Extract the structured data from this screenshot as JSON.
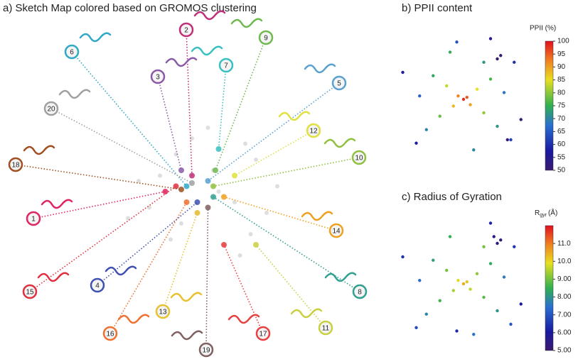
{
  "chart_data": [
    {
      "type": "sketch-map",
      "title": "a) Sketch Map colored based on GROMOS clustering",
      "xlim": [
        -1,
        1
      ],
      "ylim": [
        -1,
        1
      ],
      "background": {
        "color": "#c8c8c8",
        "x": [
          0.1,
          -0.2,
          0.3,
          -0.4,
          0.5,
          -0.1,
          0.2,
          -0.3,
          0.6,
          -0.6,
          0.05,
          -0.5,
          0.4,
          -0.25,
          0.35,
          0.7,
          -0.7,
          0.15,
          -0.05,
          0.45
        ],
        "y": [
          0.2,
          -0.3,
          -0.1,
          0.15,
          0.3,
          0.5,
          -0.5,
          -0.45,
          -0.2,
          0.1,
          0.6,
          -0.15,
          0.45,
          0.35,
          -0.6,
          0.05,
          -0.25,
          0.0,
          -0.2,
          -0.4
        ]
      },
      "series": [
        {
          "name": "1",
          "color": "#e0245e",
          "x": [
            -0.35
          ],
          "y": [
            0.0
          ]
        },
        {
          "name": "2",
          "color": "#c0307a",
          "x": [
            -0.1
          ],
          "y": [
            0.15
          ]
        },
        {
          "name": "3",
          "color": "#8a5aa8",
          "x": [
            -0.2
          ],
          "y": [
            0.2
          ]
        },
        {
          "name": "4",
          "color": "#4050b0",
          "x": [
            -0.05
          ],
          "y": [
            -0.1
          ]
        },
        {
          "name": "5",
          "color": "#5aa0d0",
          "x": [
            0.05
          ],
          "y": [
            0.1
          ]
        },
        {
          "name": "6",
          "color": "#30a8c8",
          "x": [
            -0.15
          ],
          "y": [
            0.05
          ]
        },
        {
          "name": "7",
          "color": "#3ac0c0",
          "x": [
            0.15
          ],
          "y": [
            0.4
          ]
        },
        {
          "name": "8",
          "color": "#30a090",
          "x": [
            0.1
          ],
          "y": [
            -0.05
          ]
        },
        {
          "name": "9",
          "color": "#70b850",
          "x": [
            0.12
          ],
          "y": [
            0.2
          ]
        },
        {
          "name": "10",
          "color": "#90c040",
          "x": [
            0.1
          ],
          "y": [
            0.05
          ]
        },
        {
          "name": "11",
          "color": "#c8d040",
          "x": [
            0.5
          ],
          "y": [
            -0.5
          ]
        },
        {
          "name": "12",
          "color": "#e0e040",
          "x": [
            0.3
          ],
          "y": [
            0.15
          ]
        },
        {
          "name": "13",
          "color": "#e8c030",
          "x": [
            -0.05
          ],
          "y": [
            -0.2
          ]
        },
        {
          "name": "14",
          "color": "#f0a020",
          "x": [
            0.2
          ],
          "y": [
            -0.05
          ]
        },
        {
          "name": "15",
          "color": "#e03040",
          "x": [
            -0.25
          ],
          "y": [
            0.05
          ]
        },
        {
          "name": "16",
          "color": "#f07030",
          "x": [
            -0.15
          ],
          "y": [
            -0.1
          ]
        },
        {
          "name": "17",
          "color": "#e84040",
          "x": [
            0.2
          ],
          "y": [
            -0.5
          ]
        },
        {
          "name": "18",
          "color": "#a05020",
          "x": [
            -0.2
          ],
          "y": [
            0.02
          ]
        },
        {
          "name": "19",
          "color": "#806060",
          "x": [
            0.05
          ],
          "y": [
            -0.15
          ]
        },
        {
          "name": "20",
          "color": "#a0a0a0",
          "x": [
            -0.1
          ],
          "y": [
            0.08
          ]
        }
      ]
    },
    {
      "type": "scatter",
      "title": "b) PPII content",
      "colorbar_label": "PPII (%)",
      "xlim": [
        -1,
        1
      ],
      "ylim": [
        -1,
        1
      ],
      "clim": [
        50,
        100
      ],
      "cticks": [
        50,
        55,
        60,
        65,
        70,
        75,
        80,
        85,
        90,
        95,
        100
      ],
      "x": [
        0,
        0.05,
        -0.08,
        0.1,
        -0.15,
        0.2,
        -0.25,
        0.3,
        -0.35,
        0.4,
        -0.45,
        0.5,
        -0.55,
        0.6,
        -0.65,
        0.7,
        -0.2,
        0.15,
        0.75,
        -0.7,
        0.4,
        0.85,
        -0.9,
        0.3,
        0.5,
        0.65,
        0.55,
        -0.1
      ],
      "y": [
        0,
        0.03,
        0.05,
        -0.08,
        -0.1,
        0.15,
        0.2,
        -0.2,
        -0.25,
        0.3,
        0.35,
        -0.4,
        -0.45,
        0.1,
        0.05,
        -0.6,
        0.7,
        -0.75,
        0.55,
        -0.65,
        0.9,
        -0.3,
        0.4,
        0.55,
        0.6,
        -0.6,
        0.65,
        0.85
      ],
      "c": [
        98,
        95,
        92,
        90,
        88,
        85,
        83,
        80,
        78,
        76,
        74,
        72,
        70,
        68,
        66,
        62,
        75,
        70,
        60,
        58,
        55,
        52,
        56,
        72,
        50,
        52,
        51,
        64
      ]
    },
    {
      "type": "scatter",
      "title": "c) Radius of Gyration",
      "colorbar_label": "R",
      "colorbar_label_sub": "gyr",
      "colorbar_label_suffix": "(Å)",
      "xlim": [
        -1,
        1
      ],
      "ylim": [
        -1,
        1
      ],
      "clim": [
        5,
        12
      ],
      "cticks": [
        {
          "value": 5,
          "label": "5.00"
        },
        {
          "value": 6,
          "label": "6.00"
        },
        {
          "value": 7,
          "label": "7.00"
        },
        {
          "value": 8,
          "label": "8.00"
        },
        {
          "value": 9,
          "label": "9.00"
        },
        {
          "value": 10,
          "label": "10.0"
        },
        {
          "value": 11,
          "label": "11.0"
        }
      ],
      "x": [
        0,
        0.05,
        -0.08,
        0.1,
        -0.15,
        0.2,
        -0.25,
        0.3,
        -0.35,
        0.4,
        -0.45,
        0.5,
        -0.55,
        0.6,
        -0.65,
        0.7,
        -0.2,
        0.15,
        0.75,
        -0.7,
        0.4,
        0.85,
        -0.9,
        0.3,
        0.5,
        0.55,
        0.45,
        -0.1
      ],
      "y": [
        0,
        0.03,
        0.05,
        -0.08,
        -0.1,
        0.15,
        0.2,
        -0.2,
        -0.25,
        0.3,
        0.35,
        -0.4,
        -0.45,
        0.1,
        0.05,
        -0.6,
        0.7,
        -0.75,
        0.55,
        -0.65,
        0.9,
        -0.3,
        0.4,
        0.55,
        0.6,
        0.65,
        0.7,
        -0.7
      ],
      "c": [
        10.5,
        10.2,
        9.8,
        9.6,
        9.4,
        9.2,
        9.0,
        8.8,
        8.6,
        8.4,
        8.2,
        8.0,
        7.8,
        7.6,
        7.4,
        7.0,
        8.5,
        7.5,
        6.5,
        6.8,
        6.2,
        6.0,
        6.4,
        9.0,
        5.5,
        5.3,
        5.6,
        6.3
      ]
    }
  ]
}
